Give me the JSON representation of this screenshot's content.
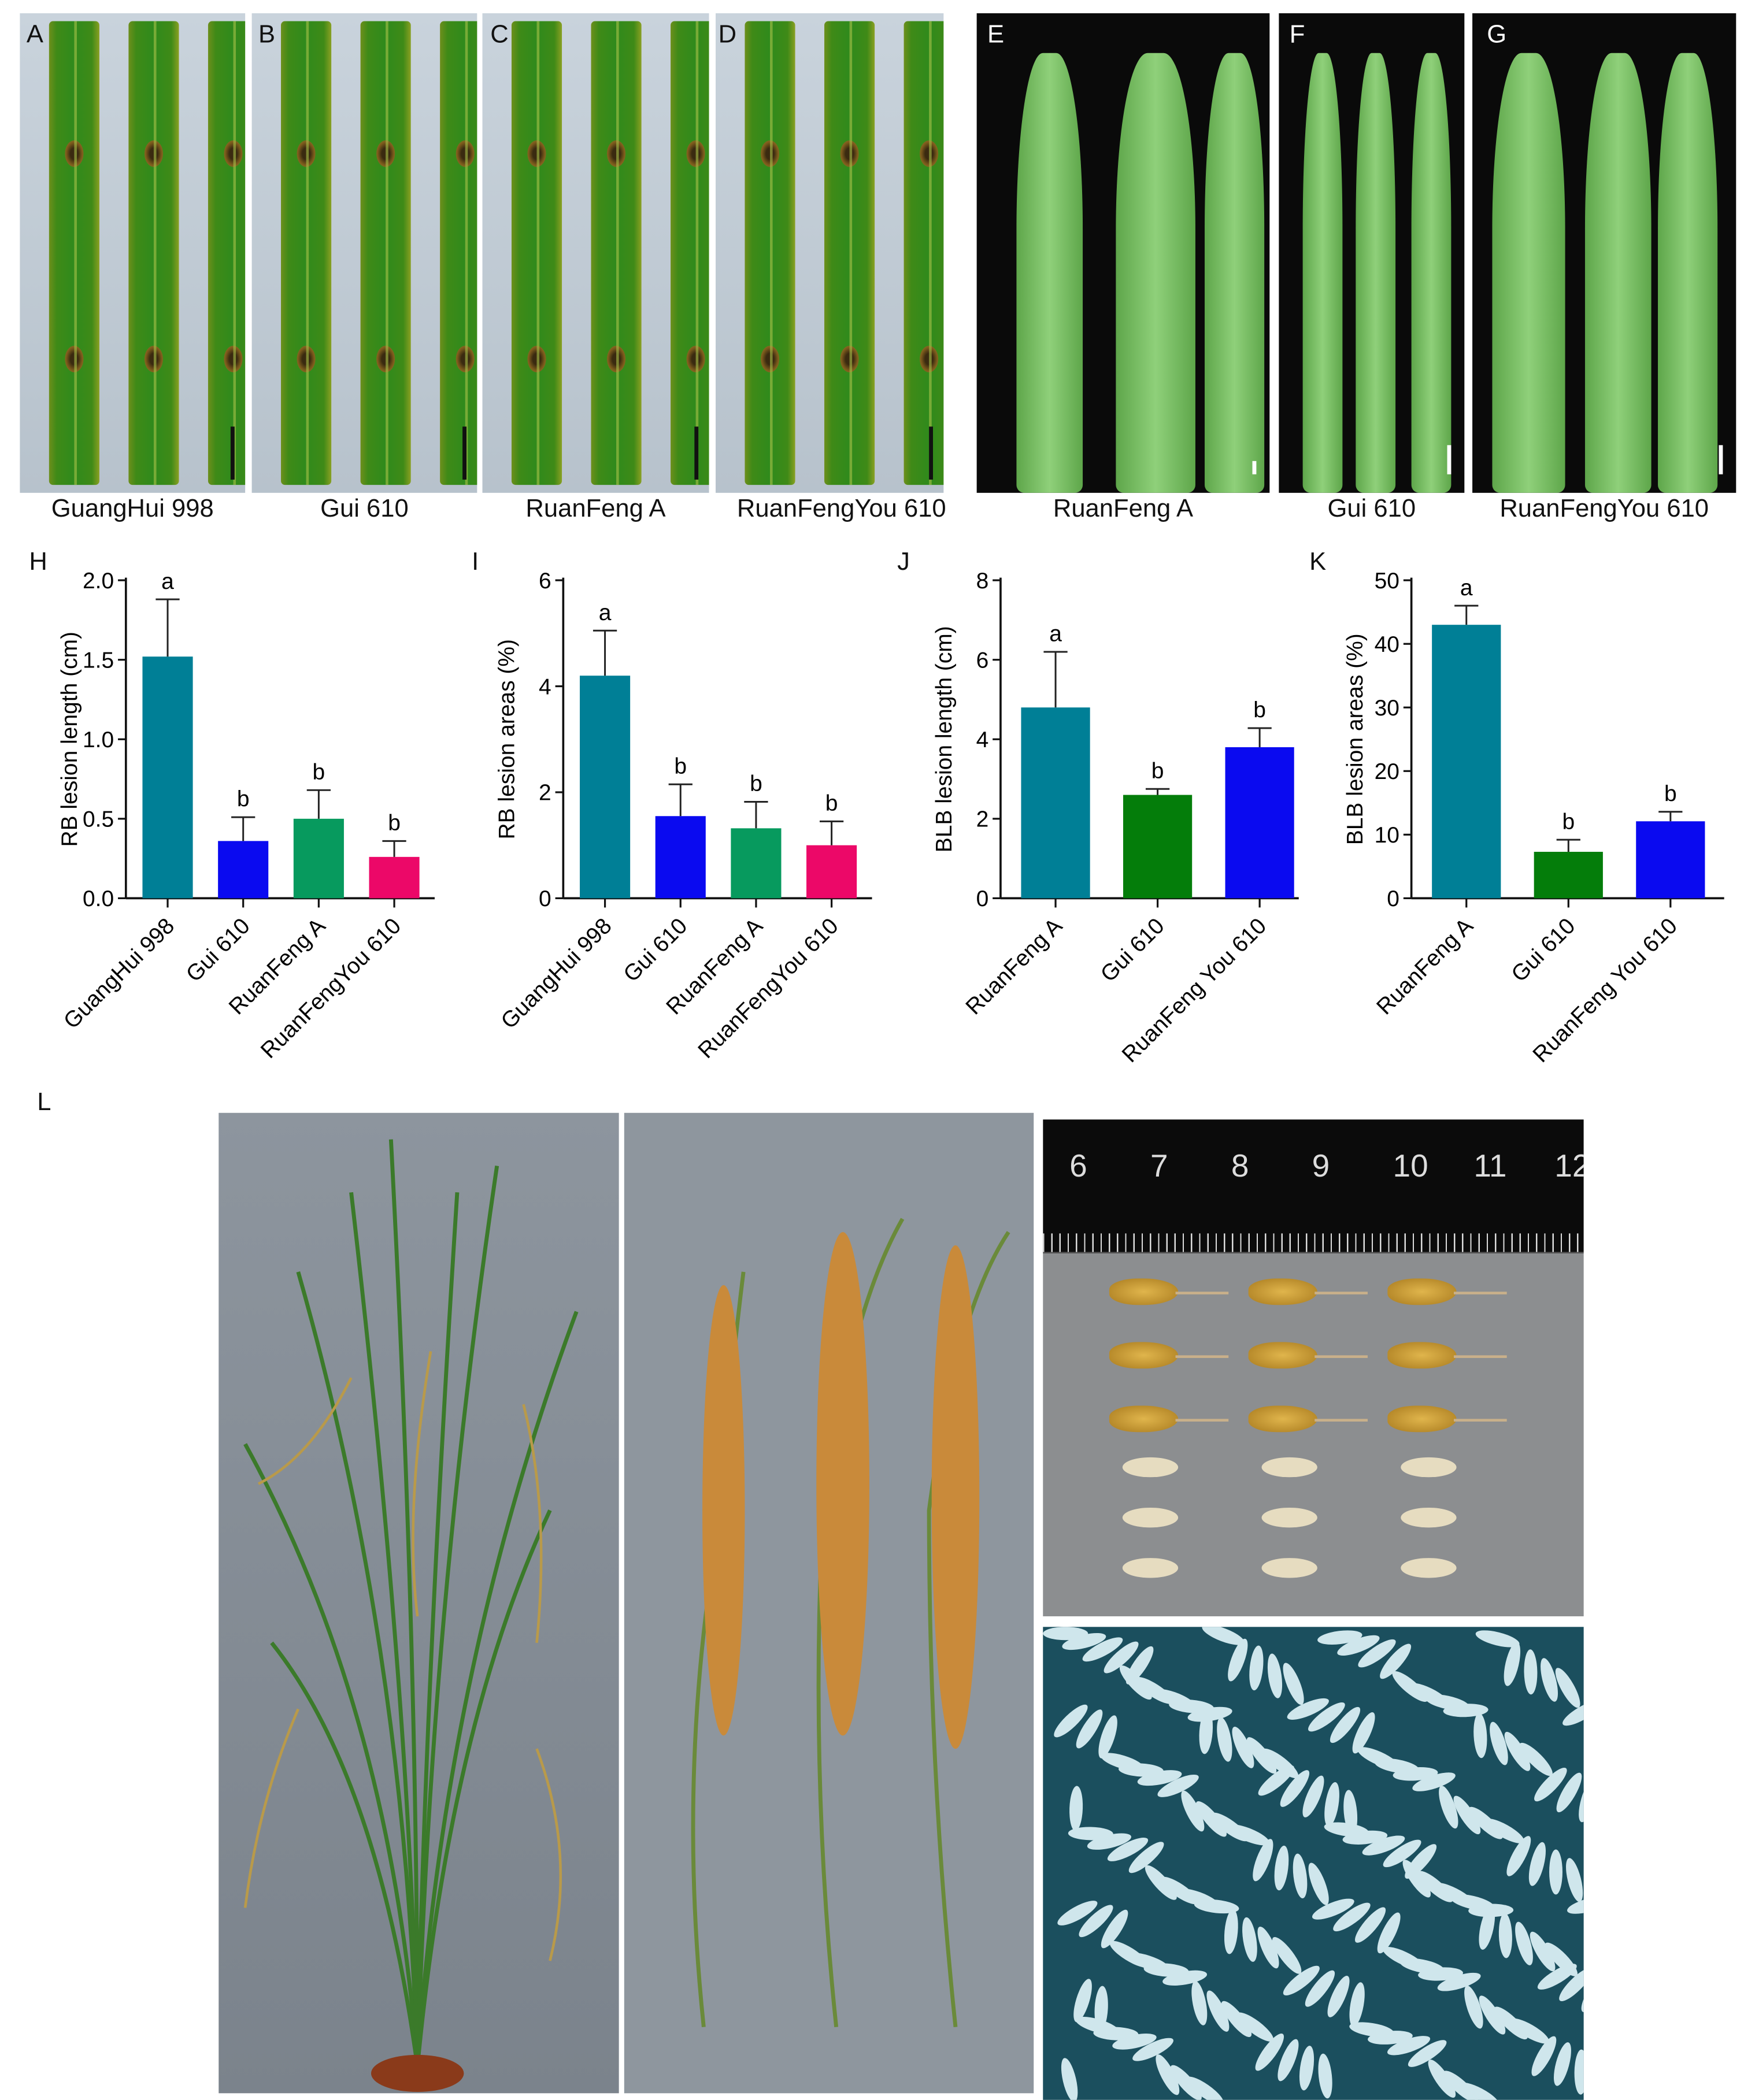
{
  "panels": {
    "A": {
      "letter": "A",
      "caption": "GuangHui 998"
    },
    "B": {
      "letter": "B",
      "caption": "Gui 610"
    },
    "C": {
      "letter": "C",
      "caption": "RuanFeng A"
    },
    "D": {
      "letter": "D",
      "caption": "RuanFengYou 610"
    },
    "E": {
      "letter": "E",
      "caption": "RuanFeng A"
    },
    "F": {
      "letter": "F",
      "caption": "Gui 610"
    },
    "G": {
      "letter": "G",
      "caption": "RuanFengYou 610"
    },
    "H": {
      "letter": "H"
    },
    "I": {
      "letter": "I"
    },
    "J": {
      "letter": "J"
    },
    "K": {
      "letter": "K"
    },
    "L": {
      "letter": "L",
      "ruler_numbers": [
        "6",
        "7",
        "8",
        "9",
        "10",
        "11",
        "12"
      ]
    }
  },
  "colors": {
    "teal": "#007f96",
    "blue": "#0a0af0",
    "green_light": "#079a5e",
    "pink": "#ec0868",
    "green_dark": "#047d0a"
  },
  "chart_data": [
    {
      "id": "H",
      "type": "bar",
      "ylabel": "RB lesion length (cm)",
      "categories": [
        "GuangHui 998",
        "Gui 610",
        "RuanFeng A",
        "RuanFengYou 610"
      ],
      "values": [
        1.52,
        0.36,
        0.5,
        0.26
      ],
      "errors": [
        0.36,
        0.15,
        0.18,
        0.1
      ],
      "letters": [
        "a",
        "b",
        "b",
        "b"
      ],
      "colors": [
        "#007f96",
        "#0a0af0",
        "#079a5e",
        "#ec0868"
      ],
      "ylim": [
        0,
        2.0
      ],
      "yticks": [
        "0.0",
        "0.5",
        "1.0",
        "1.5",
        "2.0"
      ],
      "ytick_values": [
        0,
        0.5,
        1.0,
        1.5,
        2.0
      ]
    },
    {
      "id": "I",
      "type": "bar",
      "ylabel": "RB lesion areas (%)",
      "categories": [
        "GuangHui 998",
        "Gui 610",
        "RuanFeng A",
        "RuanFengYou 610"
      ],
      "values": [
        4.2,
        1.55,
        1.32,
        1.0
      ],
      "errors": [
        0.85,
        0.6,
        0.5,
        0.45
      ],
      "letters": [
        "a",
        "b",
        "b",
        "b"
      ],
      "colors": [
        "#007f96",
        "#0a0af0",
        "#079a5e",
        "#ec0868"
      ],
      "ylim": [
        0,
        6
      ],
      "yticks": [
        "0",
        "2",
        "4",
        "6"
      ],
      "ytick_values": [
        0,
        2,
        4,
        6
      ]
    },
    {
      "id": "J",
      "type": "bar",
      "ylabel": "BLB lesion length (cm)",
      "categories": [
        "RuanFeng A",
        "Gui 610",
        "RuanFeng You 610"
      ],
      "values": [
        4.8,
        2.6,
        3.8
      ],
      "errors": [
        1.4,
        0.15,
        0.48
      ],
      "letters": [
        "a",
        "b",
        "b"
      ],
      "colors": [
        "#007f96",
        "#047d0a",
        "#0a0af0"
      ],
      "ylim": [
        0,
        8
      ],
      "yticks": [
        "0",
        "2",
        "4",
        "6",
        "8"
      ],
      "ytick_values": [
        0,
        2,
        4,
        6,
        8
      ]
    },
    {
      "id": "K",
      "type": "bar",
      "ylabel": "BLB lesion areas (%)",
      "categories": [
        "RuanFeng A",
        "Gui 610",
        "RuanFeng You 610"
      ],
      "values": [
        43,
        7.3,
        12.1
      ],
      "errors": [
        3,
        1.9,
        1.5
      ],
      "letters": [
        "a",
        "b",
        "b"
      ],
      "colors": [
        "#007f96",
        "#047d0a",
        "#0a0af0"
      ],
      "ylim": [
        0,
        50
      ],
      "yticks": [
        "0",
        "10",
        "20",
        "30",
        "40",
        "50"
      ],
      "ytick_values": [
        0,
        10,
        20,
        30,
        40,
        50
      ]
    }
  ]
}
